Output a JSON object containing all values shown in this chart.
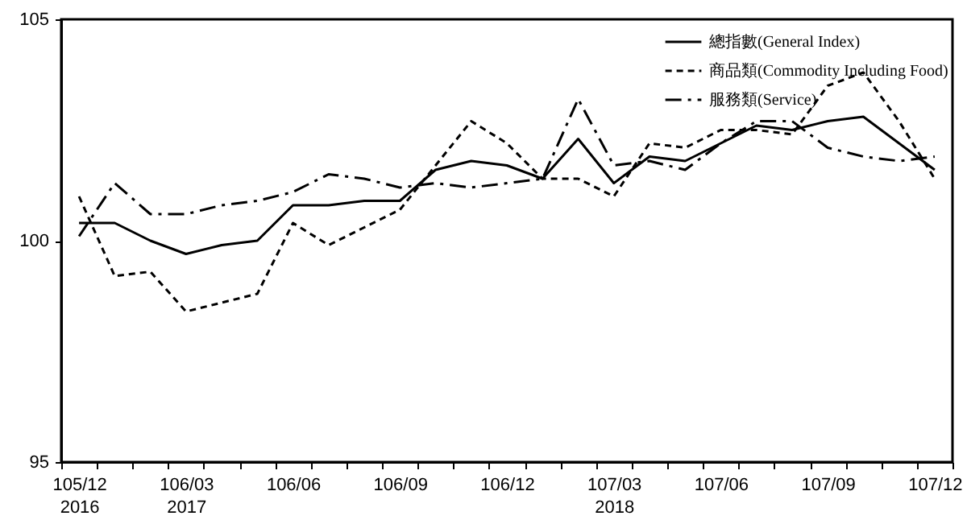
{
  "chart_data": {
    "type": "line",
    "categories": [
      "105/12\n2016",
      null,
      null,
      "106/03\n2017",
      null,
      null,
      "106/06",
      null,
      null,
      "106/09",
      null,
      null,
      "106/12",
      null,
      null,
      "107/03\n2018",
      null,
      null,
      "107/06",
      null,
      null,
      "107/09",
      null,
      null,
      "107/12"
    ],
    "series": [
      {
        "name": "總指數(General Index)",
        "color": "#000000",
        "line_style": "solid",
        "values": [
          100.4,
          100.4,
          100.0,
          99.7,
          99.9,
          100.0,
          100.8,
          100.8,
          100.9,
          100.9,
          101.6,
          101.8,
          101.7,
          101.4,
          102.3,
          101.3,
          101.9,
          101.8,
          102.2,
          102.6,
          102.5,
          102.7,
          102.8,
          102.2,
          101.6
        ]
      },
      {
        "name": "商品類(Commodity Including Food)",
        "color": "#000000",
        "line_style": "dashed",
        "values": [
          101.0,
          99.2,
          99.3,
          98.4,
          98.6,
          98.8,
          100.4,
          99.9,
          100.3,
          100.7,
          101.7,
          102.7,
          102.2,
          101.4,
          101.4,
          101.0,
          102.2,
          102.1,
          102.5,
          102.5,
          102.4,
          103.5,
          103.8,
          102.7,
          101.4
        ]
      },
      {
        "name": "服務類(Service)",
        "color": "#000000",
        "line_style": "dashdot",
        "values": [
          100.1,
          101.3,
          100.6,
          100.6,
          100.8,
          100.9,
          101.1,
          101.5,
          101.4,
          101.2,
          101.3,
          101.2,
          101.3,
          101.4,
          103.2,
          101.7,
          101.8,
          101.6,
          102.2,
          102.7,
          102.7,
          102.1,
          101.9,
          101.8,
          101.9
        ]
      }
    ],
    "ylim": [
      95,
      105
    ],
    "yticks": [
      95,
      100,
      105
    ],
    "legend": "top right",
    "marker": "none"
  }
}
